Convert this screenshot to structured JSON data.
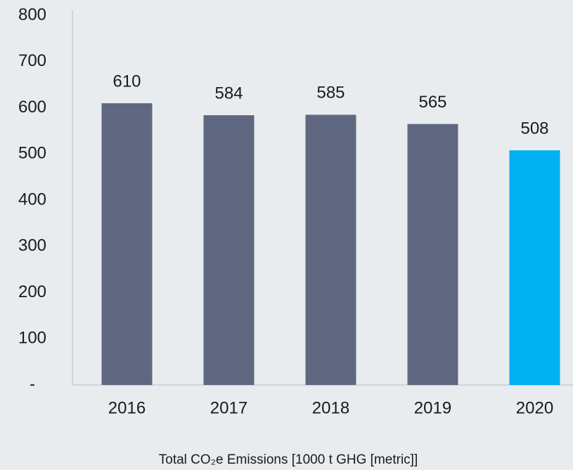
{
  "chart_data": {
    "type": "bar",
    "x_label": "Total CO₂e Emissions [1000 t GHG [metric]]",
    "categories": [
      "2016",
      "2017",
      "2018",
      "2019",
      "2020"
    ],
    "values": [
      610,
      584,
      585,
      565,
      508
    ],
    "colors": [
      "#5f6880",
      "#5f6880",
      "#5f6880",
      "#5f6880",
      "#00b0f0"
    ],
    "ylim": [
      0,
      800
    ],
    "yticks": [
      {
        "value": 0,
        "label": "-"
      },
      100,
      200,
      300,
      400,
      500,
      600,
      700,
      800
    ],
    "grid": false
  }
}
